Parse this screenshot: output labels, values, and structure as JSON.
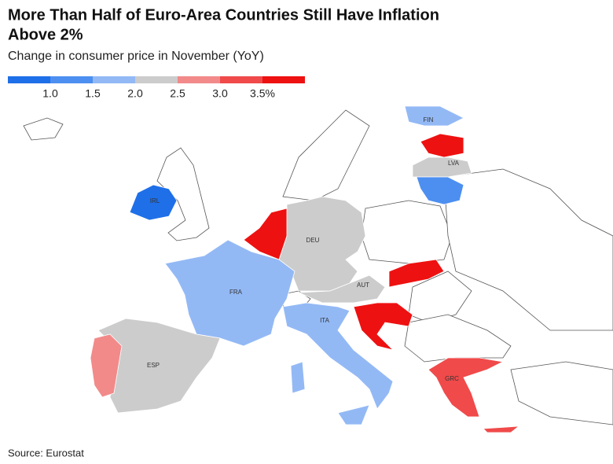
{
  "header": {
    "title_line1": "More Than Half of Euro-Area Countries Still Have Inflation",
    "title_line2": "Above 2%",
    "subtitle": "Change in consumer price in November (YoY)"
  },
  "legend": {
    "colors": [
      "#1f6fe8",
      "#4d8ff0",
      "#93b9f5",
      "#cccccc",
      "#f28a8a",
      "#f04a4a",
      "#ee1111"
    ],
    "labels": [
      "1.0",
      "1.5",
      "2.0",
      "2.5",
      "3.0",
      "3.5%"
    ]
  },
  "countries": [
    "FIN",
    "LVA",
    "IRL",
    "DEU",
    "FRA",
    "AUT",
    "ITA",
    "ESP",
    "GRC"
  ],
  "footer": {
    "source": "Source: Eurostat"
  }
}
